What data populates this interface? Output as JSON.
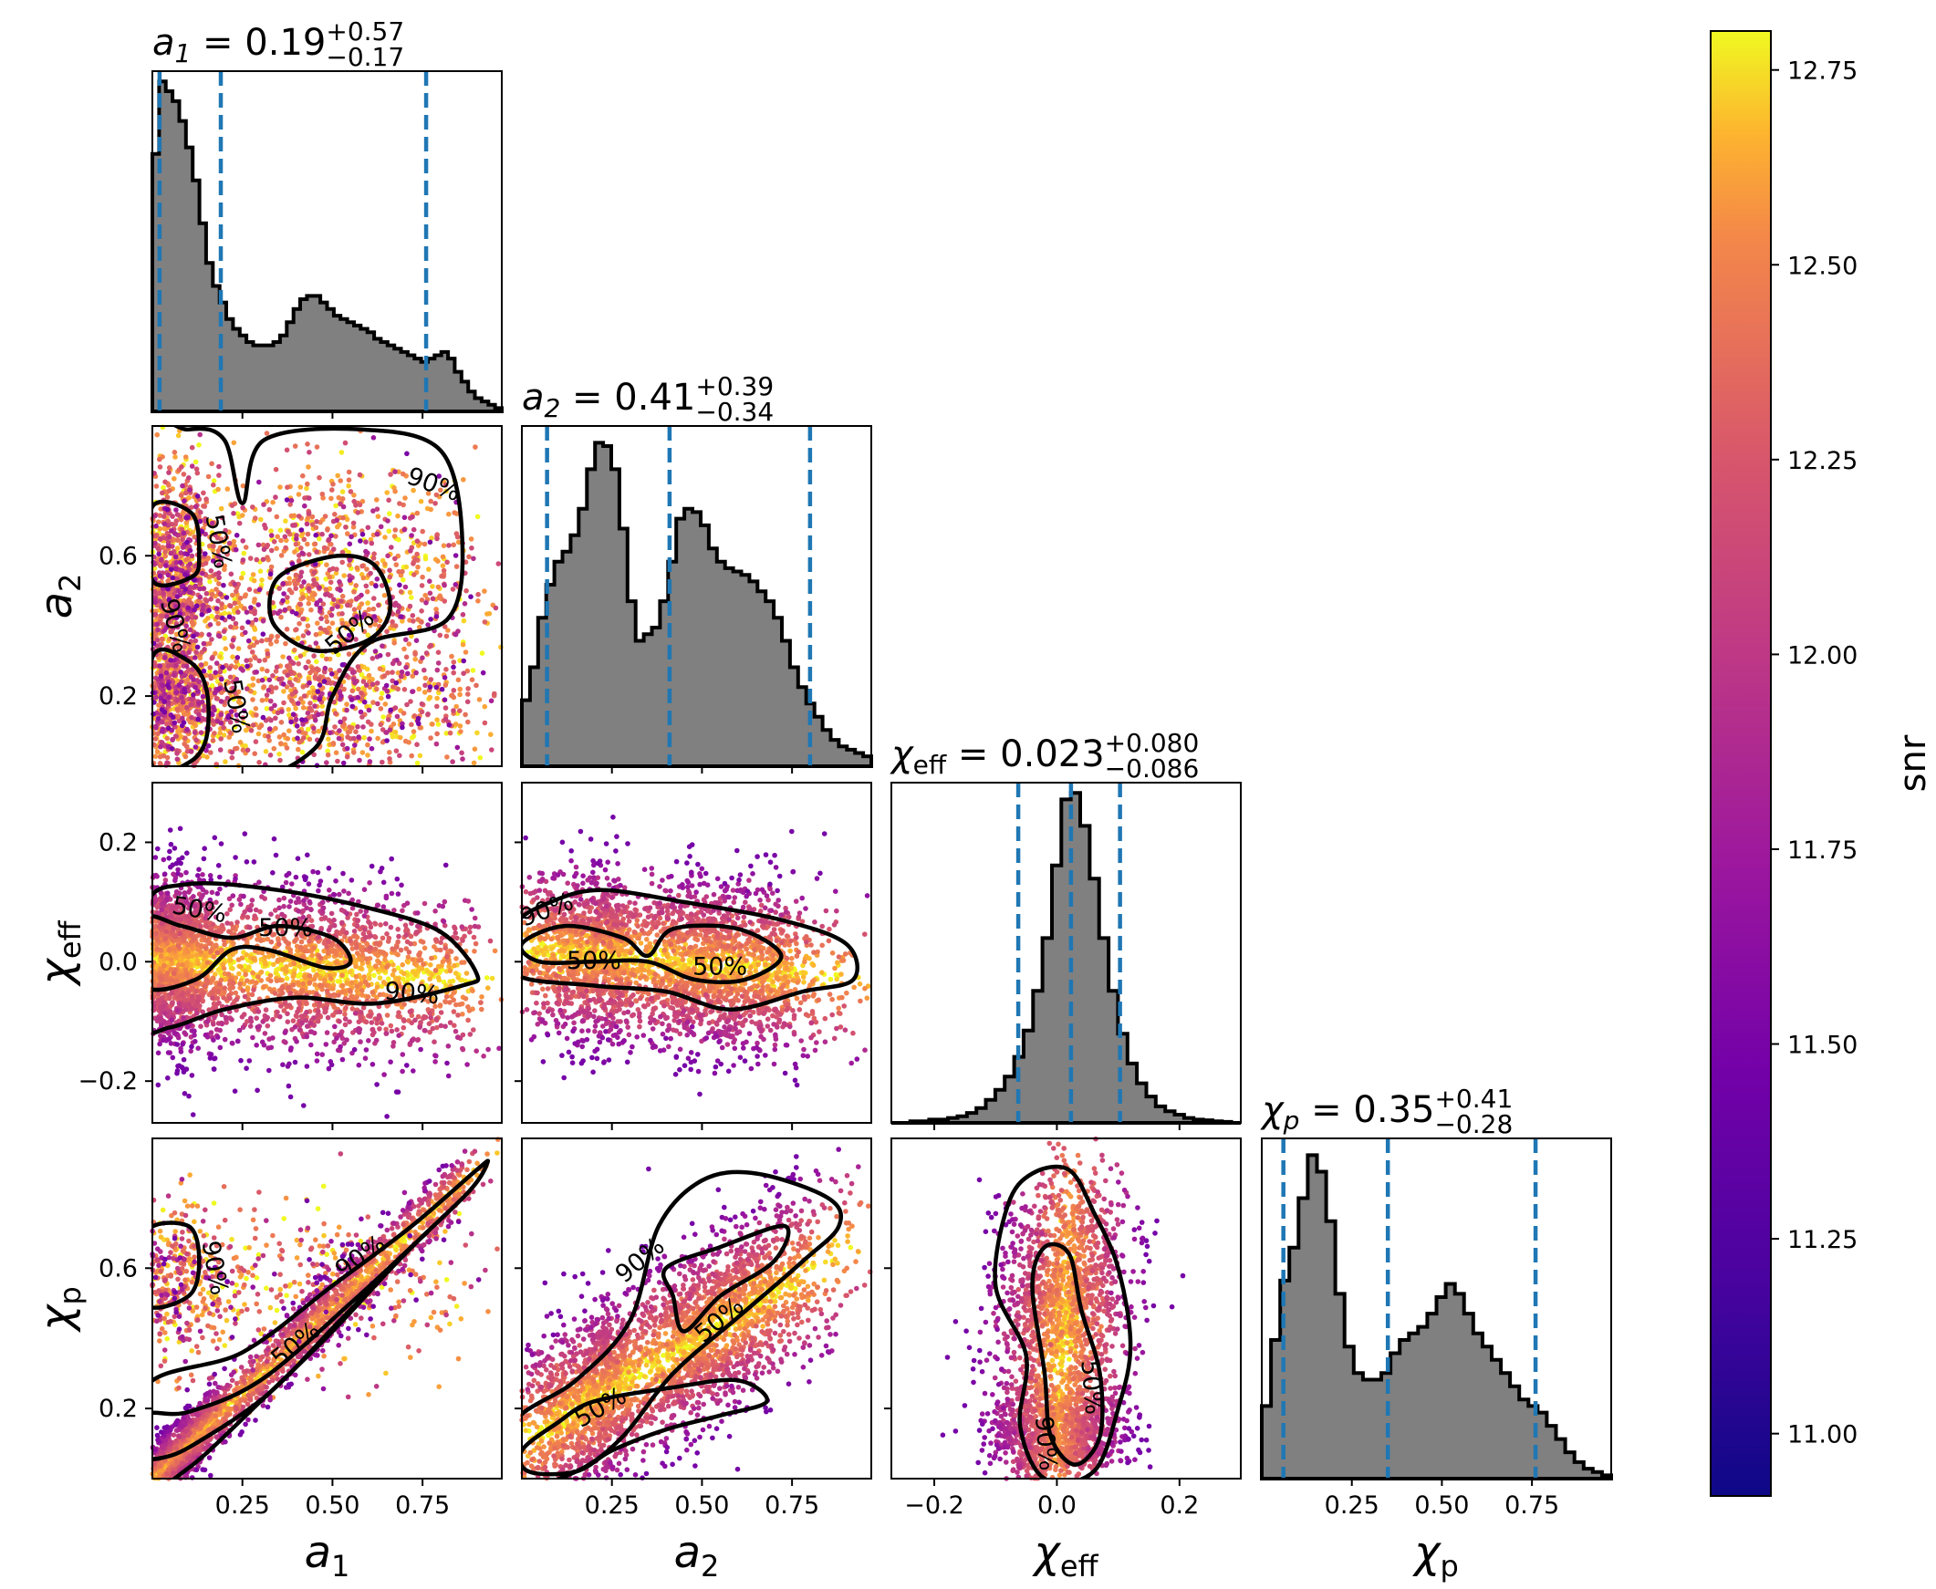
{
  "chart_data": {
    "type": "corner",
    "parameters": [
      {
        "key": "a1",
        "symbol": "a",
        "sub": "1",
        "median": "0.19",
        "plus": "+0.57",
        "minus": "−0.17",
        "range": [
          0.0,
          0.97
        ],
        "ticks": [
          0.25,
          0.5,
          0.75
        ],
        "tick_labels": [
          "0.25",
          "0.50",
          "0.75"
        ],
        "ci": [
          0.02,
          0.19,
          0.76
        ],
        "hist": [
          0.78,
          1.0,
          0.97,
          0.94,
          0.88,
          0.8,
          0.7,
          0.57,
          0.45,
          0.38,
          0.33,
          0.28,
          0.25,
          0.23,
          0.21,
          0.2,
          0.2,
          0.2,
          0.21,
          0.23,
          0.27,
          0.31,
          0.34,
          0.35,
          0.35,
          0.33,
          0.31,
          0.29,
          0.28,
          0.27,
          0.26,
          0.25,
          0.24,
          0.22,
          0.21,
          0.2,
          0.19,
          0.18,
          0.17,
          0.16,
          0.15,
          0.16,
          0.17,
          0.18,
          0.16,
          0.12,
          0.09,
          0.06,
          0.04,
          0.03,
          0.02,
          0.01
        ]
      },
      {
        "key": "a2",
        "symbol": "a",
        "sub": "2",
        "median": "0.41",
        "plus": "+0.39",
        "minus": "−0.34",
        "range": [
          0.0,
          0.97
        ],
        "ticks": [
          0.25,
          0.5,
          0.75
        ],
        "tick_labels": [
          "0.25",
          "0.50",
          "0.75"
        ],
        "ci": [
          0.07,
          0.41,
          0.8
        ],
        "hist": [
          0.2,
          0.3,
          0.45,
          0.55,
          0.62,
          0.65,
          0.7,
          0.78,
          0.9,
          0.98,
          0.97,
          0.9,
          0.72,
          0.5,
          0.38,
          0.4,
          0.42,
          0.5,
          0.62,
          0.75,
          0.78,
          0.77,
          0.73,
          0.66,
          0.62,
          0.6,
          0.59,
          0.58,
          0.56,
          0.53,
          0.5,
          0.45,
          0.38,
          0.3,
          0.24,
          0.19,
          0.15,
          0.11,
          0.08,
          0.06,
          0.05,
          0.04,
          0.03
        ]
      },
      {
        "key": "chi_eff",
        "symbol": "χ",
        "sub": "eff",
        "median": "0.023",
        "plus": "+0.080",
        "minus": "−0.086",
        "range": [
          -0.27,
          0.3
        ],
        "ticks": [
          -0.2,
          0.0,
          0.2
        ],
        "tick_labels": [
          "−0.2",
          "0.0",
          "0.2"
        ],
        "ci": [
          -0.063,
          0.023,
          0.103
        ],
        "hist": [
          0.0,
          0.0,
          0.005,
          0.005,
          0.01,
          0.01,
          0.015,
          0.02,
          0.03,
          0.045,
          0.07,
          0.1,
          0.14,
          0.2,
          0.28,
          0.4,
          0.56,
          0.78,
          0.98,
          1.0,
          0.9,
          0.74,
          0.56,
          0.4,
          0.27,
          0.18,
          0.12,
          0.08,
          0.05,
          0.035,
          0.025,
          0.015,
          0.01,
          0.008,
          0.005,
          0.003,
          0.0
        ]
      },
      {
        "key": "chi_p",
        "symbol": "χ",
        "sub": "p",
        "median": "0.35",
        "plus": "+0.41",
        "minus": "−0.28",
        "range": [
          0.0,
          0.97
        ],
        "ticks": [
          0.25,
          0.5,
          0.75
        ],
        "tick_labels": [
          "0.25",
          "0.50",
          "0.75"
        ],
        "ci": [
          0.06,
          0.35,
          0.76
        ],
        "hist": [
          0.22,
          0.42,
          0.6,
          0.7,
          0.85,
          0.98,
          0.93,
          0.78,
          0.56,
          0.4,
          0.32,
          0.3,
          0.3,
          0.32,
          0.38,
          0.42,
          0.44,
          0.46,
          0.5,
          0.55,
          0.59,
          0.56,
          0.5,
          0.44,
          0.4,
          0.36,
          0.32,
          0.28,
          0.24,
          0.22,
          0.2,
          0.16,
          0.12,
          0.08,
          0.05,
          0.03,
          0.02,
          0.01
        ]
      }
    ],
    "axis_labels": {
      "a1": {
        "symbol": "a",
        "sub": "1"
      },
      "a2": {
        "symbol": "a",
        "sub": "2"
      },
      "chi_eff": {
        "symbol": "χ",
        "sub": "eff"
      },
      "chi_p": {
        "symbol": "χ",
        "sub": "p"
      }
    },
    "ytick_sets": {
      "a2": {
        "ticks": [
          0.2,
          0.6
        ],
        "labels": [
          "0.2",
          "0.6"
        ]
      },
      "chi_eff": {
        "ticks": [
          -0.2,
          0.0,
          0.2
        ],
        "labels": [
          "−0.2",
          "0.0",
          "0.2"
        ]
      },
      "chi_p": {
        "ticks": [
          0.2,
          0.6
        ],
        "labels": [
          "0.2",
          "0.6"
        ]
      }
    },
    "contour_levels": [
      "50%",
      "90%"
    ],
    "colorbar": {
      "label": "snr",
      "colormap": "plasma",
      "range": [
        10.92,
        12.8
      ],
      "ticks": [
        11.0,
        11.25,
        11.5,
        11.75,
        12.0,
        12.25,
        12.5,
        12.75
      ],
      "tick_labels": [
        "11.00",
        "11.25",
        "11.50",
        "11.75",
        "12.00",
        "12.25",
        "12.50",
        "12.75"
      ]
    },
    "colors": {
      "hist_fill": "#808080",
      "ci_line": "#1f77b4",
      "contour": "#000000",
      "frame": "#000000"
    }
  }
}
